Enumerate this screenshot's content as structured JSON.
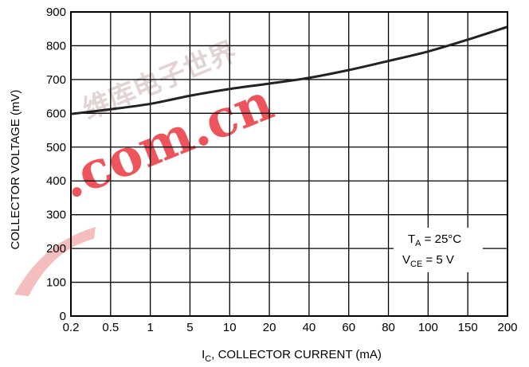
{
  "chart_data": {
    "type": "line",
    "title": "",
    "xlabel": {
      "main": "I",
      "sub": "C",
      "rest": ", COLLECTOR CURRENT (mA)"
    },
    "ylabel": "COLLECTOR VOLTAGE (mV)",
    "x_ticks": [
      "0.2",
      "0.5",
      "1",
      "5",
      "10",
      "20",
      "40",
      "60",
      "80",
      "100",
      "150",
      "200"
    ],
    "y_ticks": [
      "0",
      "100",
      "200",
      "300",
      "400",
      "500",
      "600",
      "700",
      "800",
      "900"
    ],
    "ylim": [
      0,
      900
    ],
    "grid": true,
    "series": [
      {
        "x": [
          "0.2",
          "0.5",
          "1",
          "5",
          "10",
          "20",
          "40",
          "60",
          "80",
          "100",
          "150",
          "200"
        ],
        "y": [
          598,
          612,
          628,
          652,
          672,
          688,
          705,
          728,
          755,
          783,
          818,
          856
        ]
      }
    ],
    "annotation": {
      "line1": {
        "main": "T",
        "sub": "A",
        "rest": " = 25°C"
      },
      "line2": {
        "main": "V",
        "sub": "CE",
        "rest": " = 5 V"
      }
    }
  },
  "watermark": {
    "chinese": "维库电子世界",
    "domain": ".com.cn",
    "color": "#e8202a"
  }
}
